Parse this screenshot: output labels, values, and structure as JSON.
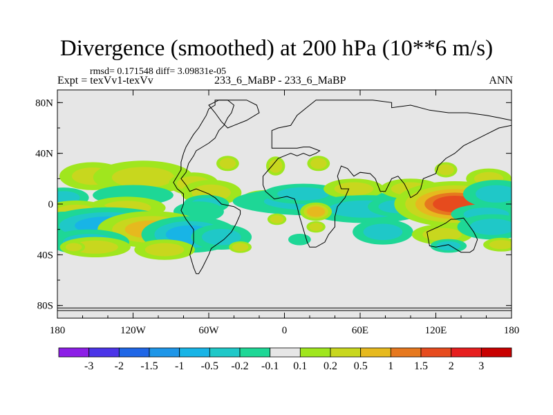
{
  "header": {
    "title": "Divergence (smoothed) at 200 hPa (10**6 m/s)",
    "stats": "rmsd= 0.171548 diff= 3.09831e-05",
    "expt": "Expt = texVv1-texVv",
    "case": "233_6_MaBP - 233_6_MaBP",
    "season": "ANN"
  },
  "chart_data": {
    "type": "heatmap",
    "title": "Divergence (smoothed) at 200 hPa (10**6 m/s)",
    "xlabel": "",
    "ylabel": "",
    "xlim": [
      -180,
      180
    ],
    "ylim": [
      -90,
      90
    ],
    "x_ticks": [
      {
        "value": -180,
        "label": "180"
      },
      {
        "value": -120,
        "label": "120W"
      },
      {
        "value": -60,
        "label": "60W"
      },
      {
        "value": 0,
        "label": "0"
      },
      {
        "value": 60,
        "label": "60E"
      },
      {
        "value": 120,
        "label": "120E"
      },
      {
        "value": 180,
        "label": "180"
      }
    ],
    "y_ticks": [
      {
        "value": 80,
        "label": "80N"
      },
      {
        "value": 40,
        "label": "40N"
      },
      {
        "value": 0,
        "label": "0"
      },
      {
        "value": -40,
        "label": "40S"
      },
      {
        "value": -80,
        "label": "80S"
      }
    ],
    "levels": [
      -3,
      -2,
      -1.5,
      -1,
      -0.5,
      -0.2,
      -0.1,
      0.1,
      0.2,
      0.5,
      1,
      1.5,
      2,
      3
    ],
    "colors": [
      "#8c1ee6",
      "#4b34e8",
      "#1f66e6",
      "#1e96e8",
      "#18b4e6",
      "#1fc8c8",
      "#1ed796",
      "#e6e6e6",
      "#a0e61e",
      "#c8d71e",
      "#e6b91e",
      "#e6781e",
      "#e64b1e",
      "#e61e1e",
      "#c80000"
    ],
    "background_color": "#e6e6e6",
    "anomalies": [
      {
        "lon": -152,
        "lat": 22,
        "wlon": 12,
        "wlat": 5,
        "amp": 0.35,
        "spread": 2.2
      },
      {
        "lon": -112,
        "lat": 21,
        "wlon": 18,
        "wlat": 6,
        "amp": 0.45,
        "spread": 2.2
      },
      {
        "lon": -72,
        "lat": 16,
        "wlon": 11,
        "wlat": 5,
        "amp": 0.25,
        "spread": 1.8
      },
      {
        "lon": -45,
        "lat": 32,
        "wlon": 6,
        "wlat": 4,
        "amp": 0.3,
        "spread": 1.5
      },
      {
        "lon": -7,
        "lat": 30,
        "wlon": 5,
        "wlat": 5,
        "amp": 0.2,
        "spread": 1.5
      },
      {
        "lon": 27,
        "lat": 32,
        "wlon": 6,
        "wlat": 4,
        "amp": 0.2,
        "spread": 1.5
      },
      {
        "lon": 128,
        "lat": 27,
        "wlon": 6,
        "wlat": 4,
        "amp": 0.2,
        "spread": 1.5
      },
      {
        "lon": 162,
        "lat": 20,
        "wlon": 9,
        "wlat": 4,
        "amp": 0.3,
        "spread": 2.0
      },
      {
        "lon": -175,
        "lat": 5,
        "wlon": 10,
        "wlat": 4,
        "amp": -0.25,
        "spread": 2.0
      },
      {
        "lon": -120,
        "lat": 7,
        "wlon": 16,
        "wlat": 4,
        "amp": -0.2,
        "spread": 2.0
      },
      {
        "lon": -58,
        "lat": 9,
        "wlon": 12,
        "wlat": 5,
        "amp": 0.3,
        "spread": 2.0
      },
      {
        "lon": -62,
        "lat": 0,
        "wlon": 10,
        "wlat": 4,
        "amp": -0.4,
        "spread": 1.8
      },
      {
        "lon": -125,
        "lat": -3,
        "wlon": 14,
        "wlat": 4,
        "amp": 0.35,
        "spread": 2.2
      },
      {
        "lon": -165,
        "lat": -6,
        "wlon": 12,
        "wlat": 4,
        "amp": 0.3,
        "spread": 2.2
      },
      {
        "lon": -68,
        "lat": -6,
        "wlon": 10,
        "wlat": 4,
        "amp": -0.2,
        "spread": 2.0
      },
      {
        "lon": -15,
        "lat": 3,
        "wlon": 10,
        "wlat": 4,
        "amp": 0.2,
        "spread": 2.0
      },
      {
        "lon": 25,
        "lat": 2,
        "wlon": 30,
        "wlat": 5,
        "amp": -0.5,
        "spread": 2.2
      },
      {
        "lon": 15,
        "lat": 8,
        "wlon": 16,
        "wlat": 4,
        "amp": -0.4,
        "spread": 2.0
      },
      {
        "lon": 55,
        "lat": 12,
        "wlon": 12,
        "wlat": 4,
        "amp": 0.3,
        "spread": 2.0
      },
      {
        "lon": 65,
        "lat": -4,
        "wlon": 22,
        "wlat": 5,
        "amp": -0.4,
        "spread": 2.2
      },
      {
        "lon": 90,
        "lat": -2,
        "wlon": 12,
        "wlat": 4,
        "amp": -0.5,
        "spread": 2.0
      },
      {
        "lon": 100,
        "lat": 12,
        "wlon": 12,
        "wlat": 4,
        "amp": 0.3,
        "spread": 2.0
      },
      {
        "lon": 135,
        "lat": 0,
        "wlon": 16,
        "wlat": 6,
        "amp": 1.6,
        "spread": 3.0
      },
      {
        "lon": 168,
        "lat": 8,
        "wlon": 12,
        "wlat": 5,
        "amp": -0.4,
        "spread": 2.2
      },
      {
        "lon": 160,
        "lat": -8,
        "wlon": 14,
        "wlat": 4,
        "amp": -0.3,
        "spread": 2.0
      },
      {
        "lon": -175,
        "lat": -18,
        "wlon": 10,
        "wlat": 6,
        "amp": -0.5,
        "spread": 2.0
      },
      {
        "lon": -140,
        "lat": -17,
        "wlon": 22,
        "wlat": 6,
        "amp": -0.9,
        "spread": 2.4
      },
      {
        "lon": -105,
        "lat": -20,
        "wlon": 18,
        "wlat": 6,
        "amp": 0.5,
        "spread": 2.4
      },
      {
        "lon": -75,
        "lat": -24,
        "wlon": 16,
        "wlat": 6,
        "amp": -0.7,
        "spread": 2.4
      },
      {
        "lon": -50,
        "lat": -26,
        "wlon": 12,
        "wlat": 5,
        "amp": -0.4,
        "spread": 2.0
      },
      {
        "lon": -155,
        "lat": -30,
        "wlon": 16,
        "wlat": 5,
        "amp": -0.4,
        "spread": 2.0
      },
      {
        "lon": -150,
        "lat": -34,
        "wlon": 14,
        "wlat": 4,
        "amp": 0.3,
        "spread": 2.0
      },
      {
        "lon": -95,
        "lat": -36,
        "wlon": 12,
        "wlat": 4,
        "amp": 0.3,
        "spread": 2.0
      },
      {
        "lon": -167,
        "lat": -34,
        "wlon": 6,
        "wlat": 3,
        "amp": 0.25,
        "spread": 1.5
      },
      {
        "lon": 25,
        "lat": -6,
        "wlon": 7,
        "wlat": 4,
        "amp": 0.5,
        "spread": 1.8
      },
      {
        "lon": -6,
        "lat": -12,
        "wlon": 5,
        "wlat": 3,
        "amp": 0.25,
        "spread": 1.5
      },
      {
        "lon": 25,
        "lat": -18,
        "wlon": 5,
        "wlat": 3,
        "amp": 0.2,
        "spread": 1.5
      },
      {
        "lon": 78,
        "lat": -22,
        "wlon": 12,
        "wlat": 5,
        "amp": -0.5,
        "spread": 2.0
      },
      {
        "lon": 125,
        "lat": -24,
        "wlon": 12,
        "wlat": 4,
        "amp": 0.35,
        "spread": 2.0
      },
      {
        "lon": 165,
        "lat": -18,
        "wlon": 14,
        "wlat": 5,
        "amp": -0.4,
        "spread": 2.0
      },
      {
        "lon": 130,
        "lat": -33,
        "wlon": 8,
        "wlat": 3,
        "amp": -0.25,
        "spread": 1.8
      },
      {
        "lon": 172,
        "lat": -32,
        "wlon": 8,
        "wlat": 3,
        "amp": 0.3,
        "spread": 1.8
      },
      {
        "lon": -35,
        "lat": -34,
        "wlon": 6,
        "wlat": 3,
        "amp": 0.25,
        "spread": 1.5
      },
      {
        "lon": 12,
        "lat": -28,
        "wlon": 6,
        "wlat": 3,
        "amp": -0.2,
        "spread": 1.5
      }
    ],
    "coastline": {
      "americas": [
        [
          -55,
          82
        ],
        [
          -55,
          78
        ],
        [
          -60,
          75
        ],
        [
          -62,
          70
        ],
        [
          -65,
          65
        ],
        [
          -68,
          60
        ],
        [
          -72,
          55
        ],
        [
          -75,
          50
        ],
        [
          -78,
          45
        ],
        [
          -80,
          40
        ],
        [
          -82,
          33
        ],
        [
          -82,
          27
        ],
        [
          -85,
          22
        ],
        [
          -88,
          17
        ],
        [
          -85,
          12
        ],
        [
          -80,
          8
        ],
        [
          -80,
          0
        ],
        [
          -82,
          -5
        ],
        [
          -78,
          -12
        ],
        [
          -72,
          -20
        ],
        [
          -72,
          -30
        ],
        [
          -75,
          -40
        ],
        [
          -72,
          -50
        ],
        [
          -70,
          -55
        ],
        [
          -68,
          -55
        ],
        [
          -65,
          -50
        ],
        [
          -60,
          -40
        ],
        [
          -58,
          -35
        ],
        [
          -48,
          -28
        ],
        [
          -42,
          -22
        ],
        [
          -38,
          -15
        ],
        [
          -35,
          -8
        ],
        [
          -35,
          -5
        ],
        [
          -40,
          -2
        ],
        [
          -50,
          0
        ],
        [
          -55,
          5
        ],
        [
          -60,
          8
        ],
        [
          -65,
          10
        ],
        [
          -70,
          12
        ],
        [
          -75,
          10
        ],
        [
          -78,
          15
        ],
        [
          -82,
          20
        ],
        [
          -78,
          25
        ],
        [
          -76,
          32
        ],
        [
          -72,
          38
        ],
        [
          -70,
          42
        ],
        [
          -65,
          45
        ],
        [
          -60,
          48
        ],
        [
          -55,
          52
        ],
        [
          -52,
          58
        ],
        [
          -48,
          62
        ],
        [
          -45,
          68
        ],
        [
          -42,
          72
        ],
        [
          -40,
          78
        ],
        [
          -45,
          82
        ],
        [
          -55,
          82
        ]
      ],
      "eurasia_africa": [
        [
          -10,
          58
        ],
        [
          -5,
          60
        ],
        [
          5,
          62
        ],
        [
          10,
          70
        ],
        [
          20,
          78
        ],
        [
          25,
          82
        ],
        [
          40,
          82
        ],
        [
          70,
          82
        ],
        [
          85,
          80
        ],
        [
          85,
          76
        ],
        [
          100,
          78
        ],
        [
          115,
          74
        ],
        [
          130,
          72
        ],
        [
          145,
          72
        ],
        [
          160,
          70
        ],
        [
          170,
          68
        ],
        [
          180,
          66
        ],
        [
          180,
          62
        ],
        [
          170,
          60
        ],
        [
          160,
          55
        ],
        [
          150,
          50
        ],
        [
          142,
          46
        ],
        [
          135,
          40
        ],
        [
          128,
          36
        ],
        [
          122,
          30
        ],
        [
          120,
          24
        ],
        [
          110,
          20
        ],
        [
          108,
          12
        ],
        [
          105,
          8
        ],
        [
          100,
          5
        ],
        [
          98,
          10
        ],
        [
          95,
          16
        ],
        [
          90,
          22
        ],
        [
          85,
          20
        ],
        [
          80,
          10
        ],
        [
          76,
          10
        ],
        [
          72,
          20
        ],
        [
          68,
          24
        ],
        [
          60,
          25
        ],
        [
          55,
          22
        ],
        [
          50,
          28
        ],
        [
          45,
          30
        ],
        [
          42,
          22
        ],
        [
          45,
          12
        ],
        [
          51,
          12
        ],
        [
          48,
          5
        ],
        [
          42,
          -2
        ],
        [
          40,
          -10
        ],
        [
          40,
          -18
        ],
        [
          35,
          -24
        ],
        [
          32,
          -30
        ],
        [
          25,
          -34
        ],
        [
          20,
          -34
        ],
        [
          18,
          -30
        ],
        [
          15,
          -20
        ],
        [
          12,
          -10
        ],
        [
          10,
          -2
        ],
        [
          8,
          4
        ],
        [
          2,
          6
        ],
        [
          -8,
          4
        ],
        [
          -15,
          10
        ],
        [
          -17,
          15
        ],
        [
          -17,
          22
        ],
        [
          -10,
          30
        ],
        [
          -5,
          36
        ],
        [
          0,
          38
        ],
        [
          5,
          40
        ],
        [
          10,
          38
        ],
        [
          15,
          40
        ],
        [
          20,
          38
        ],
        [
          25,
          40
        ],
        [
          28,
          42
        ],
        [
          20,
          45
        ],
        [
          15,
          45
        ],
        [
          10,
          44
        ],
        [
          5,
          44
        ],
        [
          -5,
          44
        ],
        [
          -10,
          44
        ],
        [
          -10,
          52
        ],
        [
          -10,
          58
        ]
      ],
      "australia": [
        [
          113,
          -22
        ],
        [
          115,
          -33
        ],
        [
          120,
          -34
        ],
        [
          130,
          -32
        ],
        [
          135,
          -35
        ],
        [
          140,
          -38
        ],
        [
          147,
          -38
        ],
        [
          150,
          -36
        ],
        [
          153,
          -28
        ],
        [
          150,
          -22
        ],
        [
          145,
          -15
        ],
        [
          142,
          -11
        ],
        [
          136,
          -12
        ],
        [
          132,
          -12
        ],
        [
          128,
          -15
        ],
        [
          122,
          -18
        ],
        [
          113,
          -22
        ]
      ],
      "greenland": [
        [
          -52,
          82
        ],
        [
          -30,
          82
        ],
        [
          -22,
          78
        ],
        [
          -20,
          72
        ],
        [
          -30,
          66
        ],
        [
          -40,
          62
        ],
        [
          -45,
          60
        ],
        [
          -50,
          65
        ],
        [
          -55,
          72
        ],
        [
          -60,
          78
        ],
        [
          -52,
          82
        ]
      ],
      "antarctica": [
        [
          -180,
          -82
        ],
        [
          180,
          -82
        ],
        [
          180,
          -84
        ],
        [
          -180,
          -84
        ],
        [
          -180,
          -82
        ]
      ]
    }
  }
}
